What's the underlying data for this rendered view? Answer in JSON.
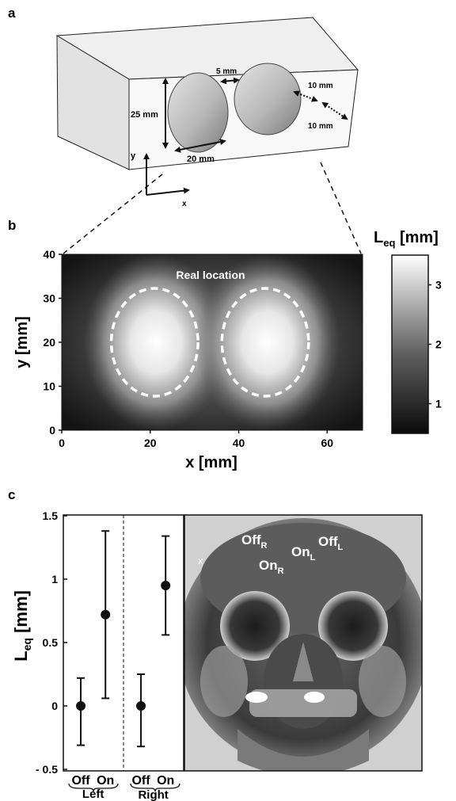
{
  "panels": {
    "a": {
      "letter": "a",
      "dim_25mm": "25 mm",
      "dim_5mm": "5 mm",
      "dim_20mm": "20 mm",
      "dim_10mm_top": "10 mm",
      "dim_10mm_bottom": "10 mm",
      "axis_y": "y",
      "axis_x": "x"
    },
    "b": {
      "letter": "b",
      "annotation": "Real location",
      "xlabel": "x [mm]",
      "ylabel": "y [mm]",
      "colorbar_title_main": "L",
      "colorbar_title_sub": "eq",
      "colorbar_title_unit": " [mm]",
      "colorbar_ticks": [
        "1",
        "2",
        "3"
      ]
    },
    "c": {
      "letter": "c",
      "ylabel_main": "L",
      "ylabel_sub": "eq",
      "ylabel_unit": " [mm]",
      "xtick_labels": [
        "Off",
        "On",
        "Off",
        "On"
      ],
      "group_labels": [
        "Left",
        "Right"
      ],
      "xray_labels": [
        {
          "main": "Off",
          "sub": "R"
        },
        {
          "main": "On",
          "sub": "R"
        },
        {
          "main": "On",
          "sub": "L"
        },
        {
          "main": "Off",
          "sub": "L"
        }
      ],
      "xray_marker": "x"
    }
  },
  "chart_data": [
    {
      "type": "heatmap",
      "xlabel": "x [mm]",
      "ylabel": "y [mm]",
      "xlim": [
        0,
        68
      ],
      "ylim": [
        0,
        40
      ],
      "xticks": [
        0,
        20,
        40,
        60
      ],
      "yticks": [
        0,
        10,
        20,
        30,
        40
      ],
      "colorbar": {
        "label": "Leq [mm]",
        "range": [
          0.5,
          3.5
        ],
        "ticks": [
          1,
          2,
          3
        ]
      },
      "annotation": "Real location",
      "regions": [
        {
          "center_x": 21,
          "center_y": 20,
          "width": 20,
          "height": 25
        },
        {
          "center_x": 46,
          "center_y": 20,
          "width": 20,
          "height": 25
        }
      ]
    },
    {
      "type": "scatter",
      "ylabel": "Leq [mm]",
      "ylim": [
        -0.5,
        1.5
      ],
      "yticks": [
        -0.5,
        0,
        0.5,
        1,
        1.5
      ],
      "ytick_labels": [
        "- 0.5",
        "0",
        "0.5",
        "1",
        "1.5"
      ],
      "categories": [
        "Off",
        "On",
        "Off",
        "On"
      ],
      "groups": [
        "Left",
        "Left",
        "Right",
        "Right"
      ],
      "values": [
        0.0,
        0.72,
        0.0,
        0.95
      ],
      "error_low": [
        -0.31,
        0.06,
        -0.32,
        0.56
      ],
      "error_high": [
        0.22,
        1.38,
        0.25,
        1.34
      ]
    }
  ]
}
